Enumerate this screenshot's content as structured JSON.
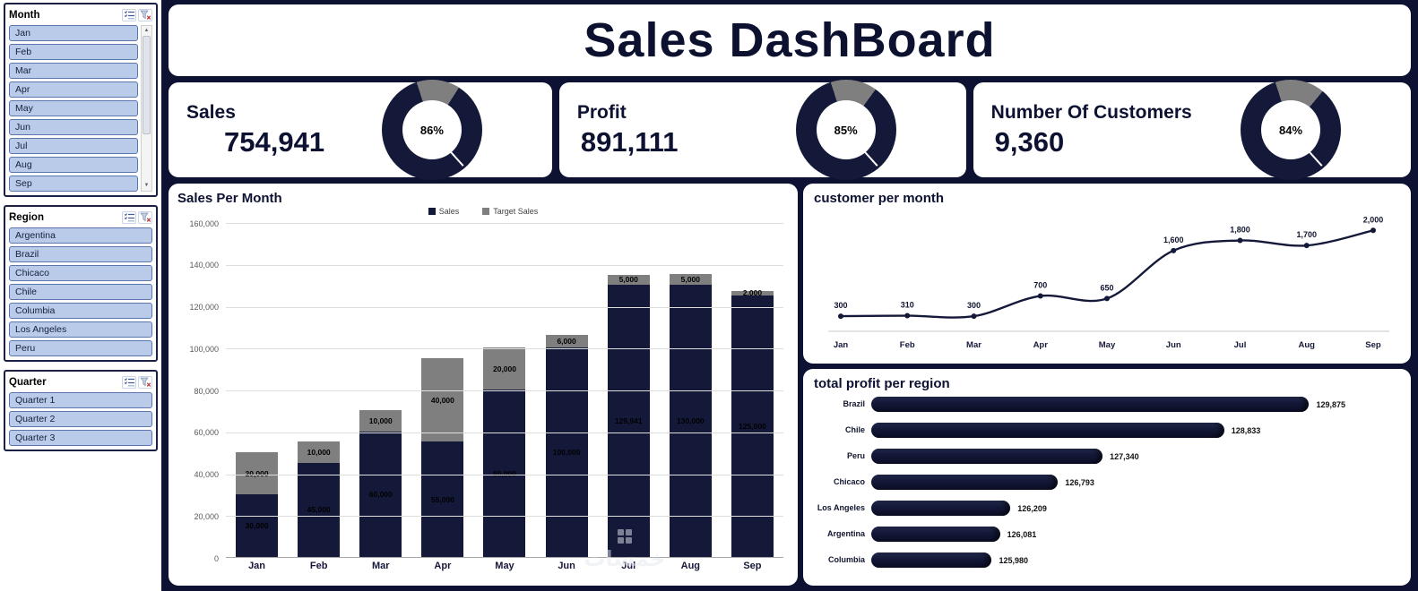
{
  "title": "Sales DashBoard",
  "watermark": "خمسات",
  "colors": {
    "navy": "#141939",
    "gray": "#7f7f7f",
    "background": "#0d1232",
    "slicer_fill": "#b9cbe8",
    "slicer_border": "#5a76ad",
    "grid": "#dedede"
  },
  "slicers": [
    {
      "title": "Month",
      "scrollbar": true,
      "items": [
        "Jan",
        "Feb",
        "Mar",
        "Apr",
        "May",
        "Jun",
        "Jul",
        "Aug",
        "Sep"
      ]
    },
    {
      "title": "Region",
      "scrollbar": false,
      "items": [
        "Argentina",
        "Brazil",
        "Chicaco",
        "Chile",
        "Columbia",
        "Los Angeles",
        "Peru"
      ]
    },
    {
      "title": "Quarter",
      "scrollbar": false,
      "items": [
        "Quarter 1",
        "Quarter 2",
        "Quarter 3"
      ]
    }
  ],
  "kpis": [
    {
      "label": "Sales",
      "value": "754,941",
      "percent": 86,
      "percent_label": "86%"
    },
    {
      "label": "Profit",
      "value": "891,111",
      "percent": 85,
      "percent_label": "85%"
    },
    {
      "label": "Number Of Customers",
      "value": "9,360",
      "percent": 84,
      "percent_label": "84%"
    }
  ],
  "chart_data": [
    {
      "type": "bar",
      "name": "sales-per-month",
      "title": "Sales Per Month",
      "stacked": true,
      "legend_position": "top",
      "categories": [
        "Jan",
        "Feb",
        "Mar",
        "Apr",
        "May",
        "Jun",
        "Jul",
        "Aug",
        "Sep"
      ],
      "series": [
        {
          "name": "Sales",
          "color": "#141939",
          "values": [
            30000,
            45000,
            60000,
            55000,
            80000,
            100000,
            129941,
            130000,
            125000
          ],
          "labels": [
            "30,000",
            "45,000",
            "60,000",
            "55,000",
            "80,000",
            "100,000",
            "129,941",
            "130,000",
            "125,000"
          ]
        },
        {
          "name": "Target Sales",
          "color": "#7f7f7f",
          "values": [
            20000,
            10000,
            10000,
            40000,
            20000,
            6000,
            5000,
            5000,
            2000
          ],
          "labels": [
            "20,000",
            "10,000",
            "10,000",
            "40,000",
            "20,000",
            "6,000",
            "5,000",
            "5,000",
            "2,000"
          ]
        }
      ],
      "ylim": [
        0,
        160000
      ],
      "yticks": [
        "0",
        "20,000",
        "40,000",
        "60,000",
        "80,000",
        "100,000",
        "120,000",
        "140,000",
        "160,000"
      ],
      "grid": true
    },
    {
      "type": "line",
      "name": "customer-per-month",
      "title": "customer per month",
      "categories": [
        "Jan",
        "Feb",
        "Mar",
        "Apr",
        "May",
        "Jun",
        "Jul",
        "Aug",
        "Sep"
      ],
      "values": [
        300,
        310,
        300,
        700,
        650,
        1600,
        1800,
        1700,
        2000
      ],
      "labels": [
        "300",
        "310",
        "300",
        "700",
        "650",
        "1,600",
        "1,800",
        "1,700",
        "2,000"
      ],
      "ylim": [
        0,
        2200
      ],
      "grid": false
    },
    {
      "type": "bar",
      "name": "total-profit-per-region",
      "title": "total profit per region",
      "orientation": "horizontal",
      "categories": [
        "Brazil",
        "Chile",
        "Peru",
        "Chicaco",
        "Los Angeles",
        "Argentina",
        "Columbia"
      ],
      "values": [
        129875,
        128833,
        127340,
        126793,
        126209,
        126081,
        125980
      ],
      "labels": [
        "129,875",
        "128,833",
        "127,340",
        "126,793",
        "126,209",
        "126,081",
        "125,980"
      ],
      "xlim": [
        124500,
        130200
      ]
    }
  ]
}
